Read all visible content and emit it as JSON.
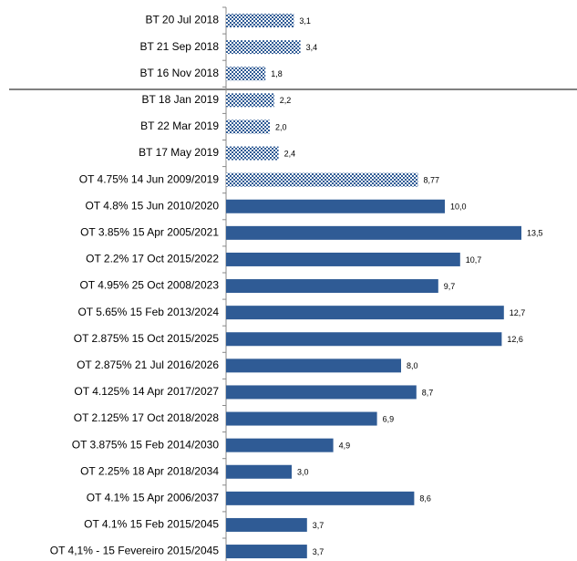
{
  "chart_data": {
    "type": "barh",
    "categories": [
      "BT 20 Jul 2018",
      "BT 21 Sep 2018",
      "BT 16 Nov 2018",
      "BT 18 Jan 2019",
      "BT 22 Mar 2019",
      "BT 17 May 2019",
      "OT 4.75% 14 Jun 2009/2019",
      "OT 4.8% 15 Jun 2010/2020",
      "OT 3.85% 15 Apr 2005/2021",
      "OT 2.2% 17 Oct 2015/2022",
      "OT 4.95% 25 Oct 2008/2023",
      "OT 5.65% 15 Feb 2013/2024",
      "OT 2.875% 15 Oct 2015/2025",
      "OT 2.875% 21 Jul 2016/2026",
      "OT 4.125% 14 Apr 2017/2027",
      "OT 2.125% 17 Oct 2018/2028",
      "OT 3.875% 15 Feb 2014/2030",
      "OT 2.25% 18 Apr 2018/2034",
      "OT 4.1% 15 Apr 2006/2037",
      "OT 4.1% 15 Feb 2015/2045",
      "OT 4,1% - 15 Fevereiro 2015/2045"
    ],
    "values": [
      3.1,
      3.4,
      1.8,
      2.2,
      2.0,
      2.4,
      8.77,
      10.0,
      13.5,
      10.7,
      9.7,
      12.7,
      12.6,
      8.0,
      8.7,
      6.9,
      4.9,
      3.0,
      8.6,
      3.7,
      3.7
    ],
    "value_labels": [
      "3,1",
      "3,4",
      "1,8",
      "2,2",
      "2,0",
      "2,4",
      "8,77",
      "10,0",
      "13,5",
      "10,7",
      "9,7",
      "12,7",
      "12,6",
      "8,0",
      "8,7",
      "6,9",
      "4,9",
      "3,0",
      "8,6",
      "3,7",
      "3,7"
    ],
    "patterns": [
      "checker",
      "checker",
      "checker",
      "checker",
      "checker",
      "checker",
      "checker",
      "solid",
      "solid",
      "solid",
      "solid",
      "solid",
      "solid",
      "solid",
      "solid",
      "solid",
      "solid",
      "solid",
      "solid",
      "solid",
      "solid"
    ],
    "color": "#2f5b95",
    "xlim": [
      0,
      16
    ]
  }
}
